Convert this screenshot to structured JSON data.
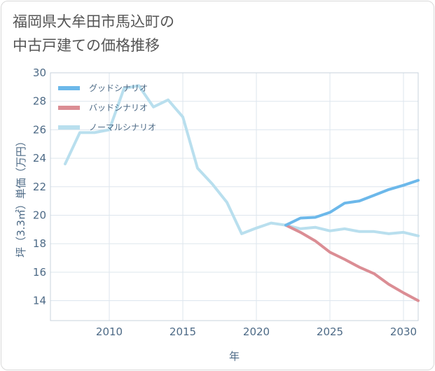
{
  "chart_data": {
    "type": "line",
    "title": "福岡県大牟田市馬込町の\n中古戸建ての価格推移",
    "xlabel": "年",
    "ylabel": "坪（3.3㎡）単価（万円）",
    "xlim": [
      2006,
      2031
    ],
    "ylim": [
      12.6,
      30
    ],
    "x_ticks": [
      2010,
      2015,
      2020,
      2025,
      2030
    ],
    "y_ticks": [
      14,
      16,
      18,
      20,
      22,
      24,
      26,
      28,
      30
    ],
    "grid": true,
    "legend_position": "top-left",
    "series": [
      {
        "name": "グッドシナリオ",
        "color": "#6cb8ea",
        "x": [
          2022,
          2023,
          2024,
          2025,
          2026,
          2027,
          2028,
          2029,
          2030,
          2031
        ],
        "values": [
          19.3,
          19.8,
          19.85,
          20.2,
          20.85,
          21.0,
          21.4,
          21.8,
          22.1,
          22.45
        ]
      },
      {
        "name": "バッドシナリオ",
        "color": "#db8d94",
        "x": [
          2022,
          2023,
          2024,
          2025,
          2026,
          2027,
          2028,
          2029,
          2030,
          2031
        ],
        "values": [
          19.3,
          18.8,
          18.2,
          17.4,
          16.9,
          16.35,
          15.9,
          15.15,
          14.55,
          14.0
        ]
      },
      {
        "name": "ノーマルシナリオ",
        "color": "#b9dfee",
        "x": [
          2007,
          2008,
          2009,
          2010,
          2011,
          2012,
          2013,
          2014,
          2015,
          2016,
          2017,
          2018,
          2019,
          2020,
          2021,
          2022,
          2023,
          2024,
          2025,
          2026,
          2027,
          2028,
          2029,
          2030,
          2031
        ],
        "values": [
          23.6,
          25.8,
          25.8,
          26.0,
          28.9,
          29.1,
          27.6,
          28.1,
          26.9,
          23.3,
          22.2,
          20.9,
          18.7,
          19.1,
          19.45,
          19.3,
          19.05,
          19.15,
          18.9,
          19.05,
          18.85,
          18.85,
          18.7,
          18.8,
          18.55
        ]
      }
    ]
  }
}
